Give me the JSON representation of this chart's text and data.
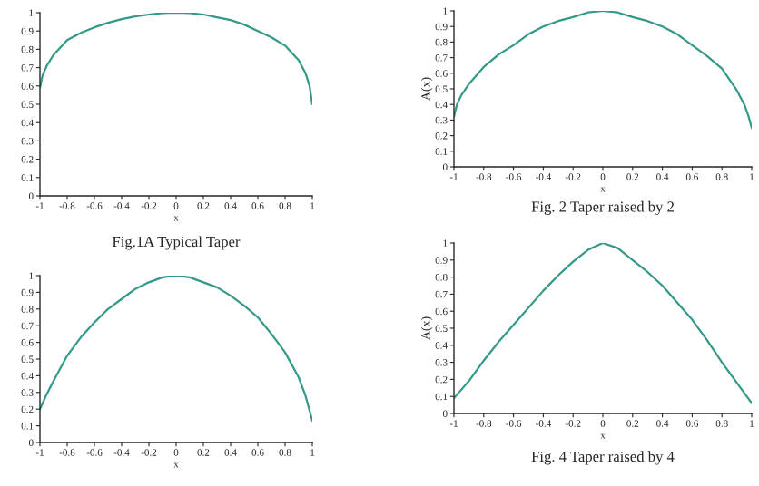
{
  "chart_data": [
    {
      "type": "line",
      "title": "Fig.1A Typical Taper",
      "xlabel": "x",
      "x": [
        -1,
        -0.98,
        -0.95,
        -0.9,
        -0.8,
        -0.7,
        -0.6,
        -0.5,
        -0.4,
        -0.3,
        -0.2,
        -0.1,
        0,
        0.1,
        0.2,
        0.3,
        0.4,
        0.5,
        0.6,
        0.7,
        0.8,
        0.9,
        0.95,
        0.98,
        1
      ],
      "series": [
        {
          "color": "#339988",
          "values": [
            0.59,
            0.66,
            0.71,
            0.77,
            0.85,
            0.89,
            0.92,
            0.945,
            0.965,
            0.98,
            0.99,
            0.998,
            1,
            0.998,
            0.99,
            0.975,
            0.96,
            0.935,
            0.9,
            0.865,
            0.82,
            0.74,
            0.67,
            0.6,
            0.5
          ]
        }
      ],
      "xlim": [
        -1,
        1
      ],
      "ylim": [
        0,
        1
      ],
      "xticks": [
        -1,
        -0.8,
        -0.6,
        -0.4,
        -0.2,
        0,
        0.2,
        0.4,
        0.6,
        0.8,
        1
      ],
      "yticks": [
        0,
        0.1,
        0.2,
        0.3,
        0.4,
        0.5,
        0.6,
        0.7,
        0.8,
        0.9,
        1
      ],
      "grid": false,
      "legend": false
    },
    {
      "type": "line",
      "title": "Fig. 2 Taper raised by 2",
      "xlabel": "x",
      "ylabel": "A(x)",
      "x": [
        -1,
        -0.98,
        -0.95,
        -0.9,
        -0.8,
        -0.7,
        -0.6,
        -0.5,
        -0.4,
        -0.3,
        -0.2,
        -0.1,
        0,
        0.1,
        0.2,
        0.3,
        0.4,
        0.5,
        0.6,
        0.7,
        0.8,
        0.9,
        0.95,
        0.98,
        1
      ],
      "series": [
        {
          "color": "#339988",
          "values": [
            0.32,
            0.4,
            0.46,
            0.53,
            0.64,
            0.72,
            0.78,
            0.85,
            0.9,
            0.935,
            0.96,
            0.99,
            1,
            0.99,
            0.96,
            0.935,
            0.9,
            0.85,
            0.78,
            0.71,
            0.63,
            0.49,
            0.4,
            0.32,
            0.25
          ]
        }
      ],
      "xlim": [
        -1,
        1
      ],
      "ylim": [
        0,
        1
      ],
      "xticks": [
        -1,
        -0.8,
        -0.6,
        -0.4,
        -0.2,
        0,
        0.2,
        0.4,
        0.6,
        0.8,
        1
      ],
      "yticks": [
        0,
        0.1,
        0.2,
        0.3,
        0.4,
        0.5,
        0.6,
        0.7,
        0.8,
        0.9,
        1
      ],
      "grid": false,
      "legend": false
    },
    {
      "type": "line",
      "xlabel": "x",
      "x": [
        -1,
        -0.95,
        -0.9,
        -0.8,
        -0.7,
        -0.6,
        -0.5,
        -0.4,
        -0.3,
        -0.2,
        -0.1,
        0,
        0.1,
        0.2,
        0.3,
        0.4,
        0.5,
        0.6,
        0.7,
        0.8,
        0.9,
        0.95,
        1
      ],
      "series": [
        {
          "color": "#339988",
          "values": [
            0.2,
            0.29,
            0.37,
            0.52,
            0.63,
            0.72,
            0.8,
            0.86,
            0.92,
            0.96,
            0.99,
            1,
            0.99,
            0.96,
            0.93,
            0.88,
            0.82,
            0.75,
            0.65,
            0.54,
            0.39,
            0.28,
            0.13
          ]
        }
      ],
      "xlim": [
        -1,
        1
      ],
      "ylim": [
        0,
        1
      ],
      "xticks": [
        -1,
        -0.8,
        -0.6,
        -0.4,
        -0.2,
        0,
        0.2,
        0.4,
        0.6,
        0.8,
        1
      ],
      "yticks": [
        0,
        0.1,
        0.2,
        0.3,
        0.4,
        0.5,
        0.6,
        0.7,
        0.8,
        0.9,
        1
      ],
      "grid": false,
      "legend": false
    },
    {
      "type": "line",
      "title": "Fig. 4 Taper raised by 4",
      "xlabel": "x",
      "ylabel": "A(x)",
      "x": [
        -1,
        -0.9,
        -0.8,
        -0.7,
        -0.6,
        -0.5,
        -0.4,
        -0.3,
        -0.2,
        -0.1,
        0,
        0.1,
        0.2,
        0.3,
        0.4,
        0.5,
        0.6,
        0.7,
        0.8,
        0.9,
        1
      ],
      "series": [
        {
          "color": "#339988",
          "values": [
            0.09,
            0.19,
            0.31,
            0.42,
            0.52,
            0.62,
            0.72,
            0.81,
            0.89,
            0.96,
            1,
            0.97,
            0.9,
            0.83,
            0.75,
            0.65,
            0.55,
            0.43,
            0.3,
            0.18,
            0.06
          ]
        }
      ],
      "xlim": [
        -1,
        1
      ],
      "ylim": [
        0,
        1
      ],
      "xticks": [
        -1,
        -0.8,
        -0.6,
        -0.4,
        -0.2,
        0,
        0.2,
        0.4,
        0.6,
        0.8,
        1
      ],
      "yticks": [
        0,
        0.1,
        0.2,
        0.3,
        0.4,
        0.5,
        0.6,
        0.7,
        0.8,
        0.9,
        1
      ],
      "grid": false,
      "legend": false
    }
  ]
}
